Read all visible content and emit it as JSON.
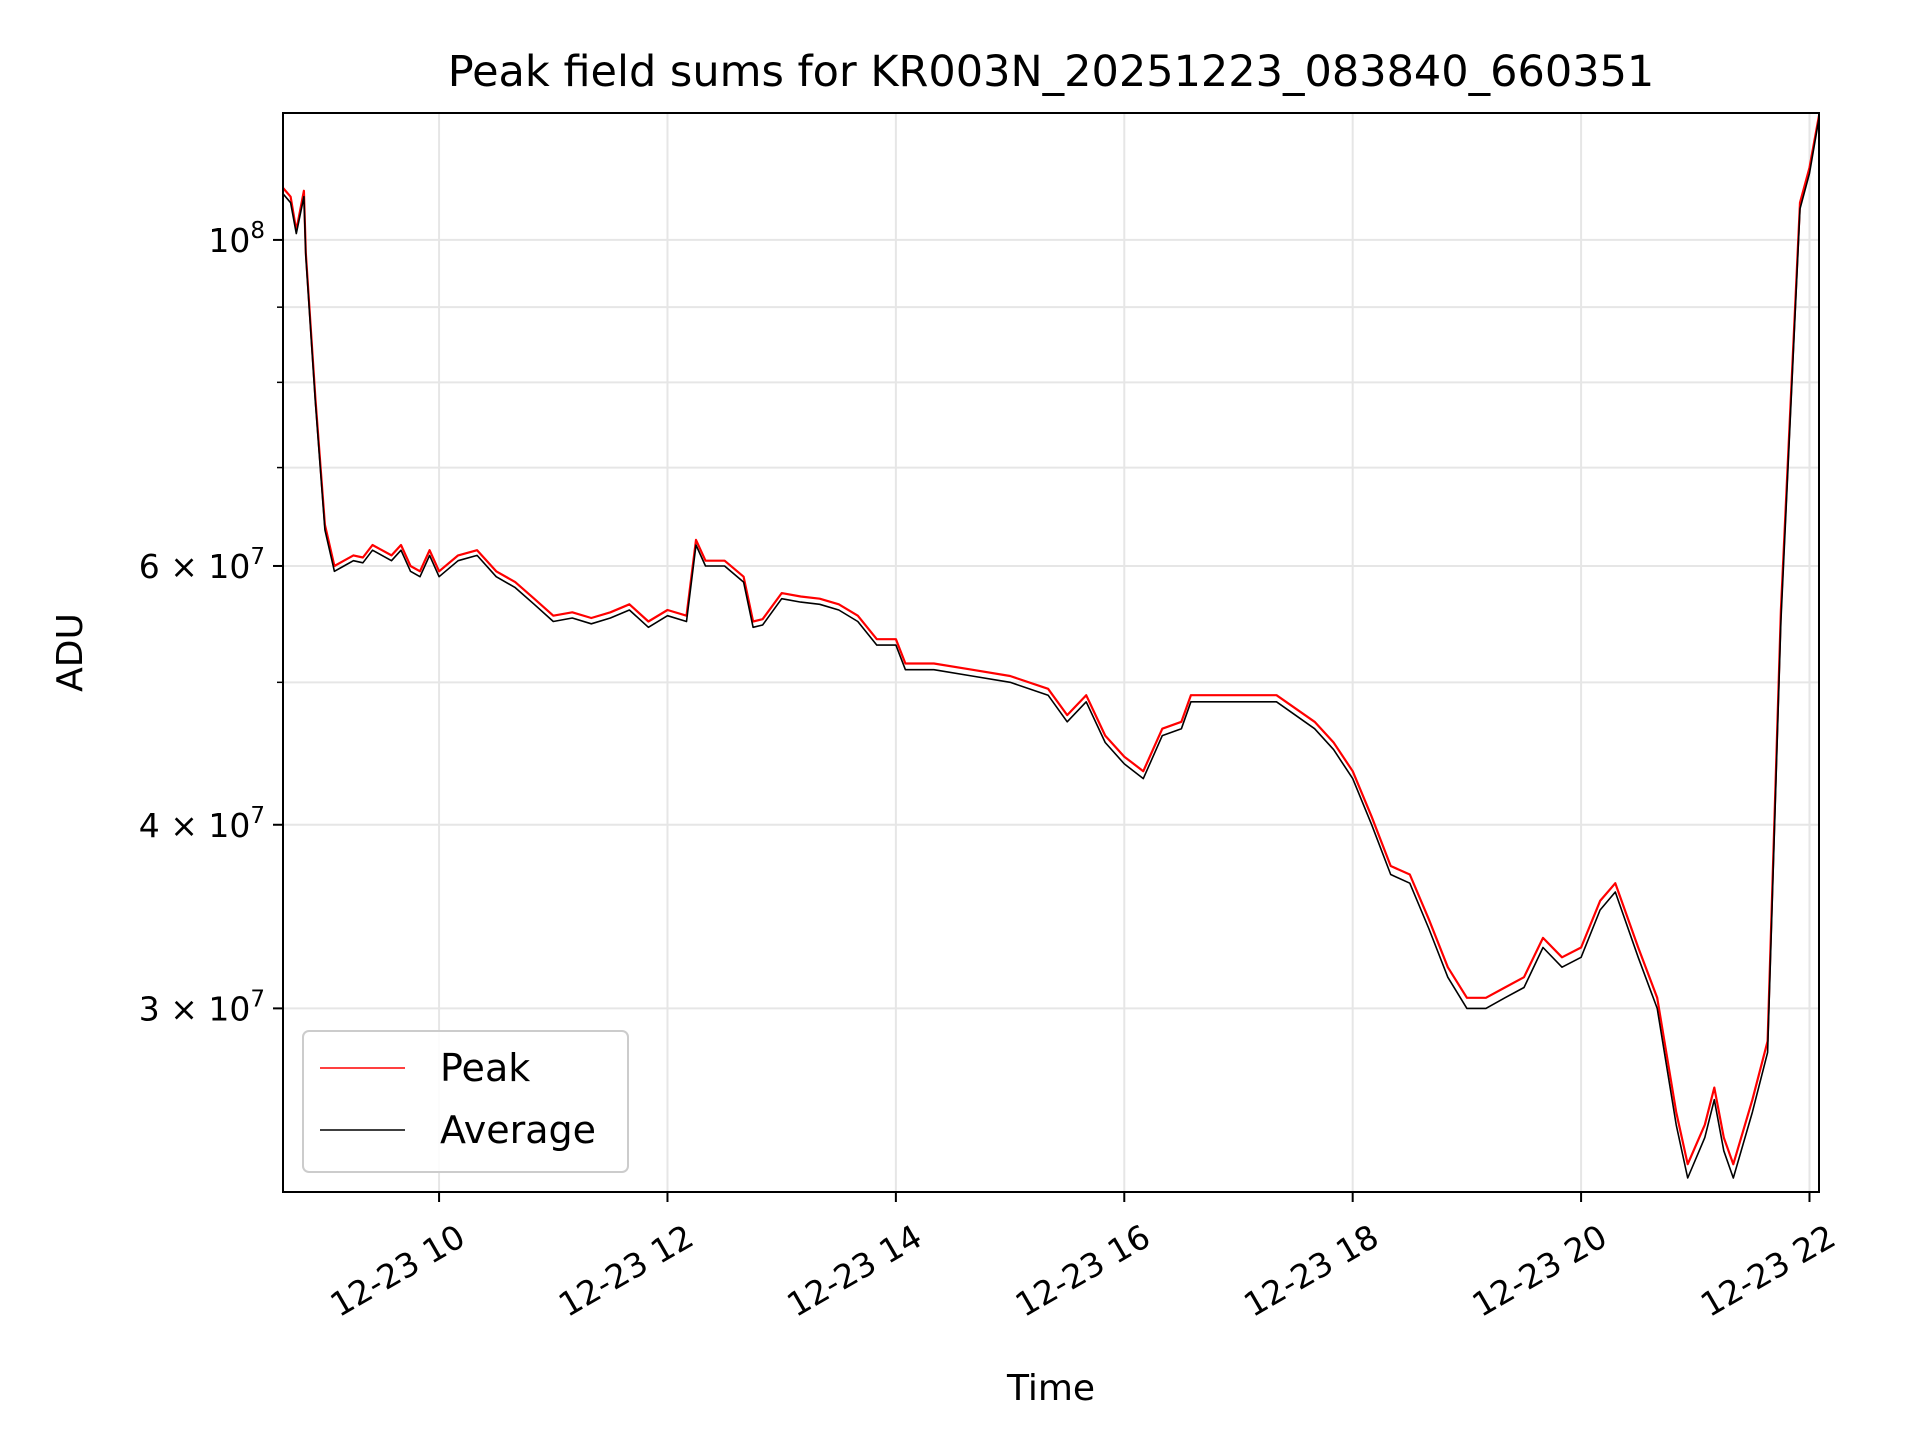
{
  "chart_data": {
    "type": "line",
    "title": "Peak field sums for KR003N_20251223_083840_660351",
    "xlabel": "Time",
    "ylabel": "ADU",
    "yscale": "log",
    "ylim": [
      22500000,
      122000000
    ],
    "xlim": [
      "2025-12-23 08:38",
      "2025-12-23 22:05"
    ],
    "grid": true,
    "legend_position": "lower-left",
    "x_ticks": [
      {
        "t": "2025-12-23 10:00",
        "label": "12-23 10"
      },
      {
        "t": "2025-12-23 12:00",
        "label": "12-23 12"
      },
      {
        "t": "2025-12-23 14:00",
        "label": "12-23 14"
      },
      {
        "t": "2025-12-23 16:00",
        "label": "12-23 16"
      },
      {
        "t": "2025-12-23 18:00",
        "label": "12-23 18"
      },
      {
        "t": "2025-12-23 20:00",
        "label": "12-23 20"
      },
      {
        "t": "2025-12-23 22:00",
        "label": "12-23 22"
      }
    ],
    "y_ticks": [
      {
        "v": 30000000,
        "base": "3 × 10",
        "exp": "7"
      },
      {
        "v": 40000000,
        "base": "4 × 10",
        "exp": "7"
      },
      {
        "v": 60000000,
        "base": "6 × 10",
        "exp": "7"
      },
      {
        "v": 100000000,
        "base": "10",
        "exp": "8"
      }
    ],
    "y_minor_ticks": [
      50000000,
      70000000,
      80000000,
      90000000
    ],
    "series": [
      {
        "name": "Peak",
        "color": "#ff0000",
        "x": [
          "2025-12-23 08:38",
          "2025-12-23 08:42",
          "2025-12-23 08:45",
          "2025-12-23 08:49",
          "2025-12-23 08:50",
          "2025-12-23 08:55",
          "2025-12-23 09:00",
          "2025-12-23 09:05",
          "2025-12-23 09:10",
          "2025-12-23 09:15",
          "2025-12-23 09:20",
          "2025-12-23 09:25",
          "2025-12-23 09:30",
          "2025-12-23 09:35",
          "2025-12-23 09:40",
          "2025-12-23 09:45",
          "2025-12-23 09:50",
          "2025-12-23 09:55",
          "2025-12-23 10:00",
          "2025-12-23 10:10",
          "2025-12-23 10:20",
          "2025-12-23 10:30",
          "2025-12-23 10:40",
          "2025-12-23 10:50",
          "2025-12-23 11:00",
          "2025-12-23 11:10",
          "2025-12-23 11:20",
          "2025-12-23 11:30",
          "2025-12-23 11:40",
          "2025-12-23 11:50",
          "2025-12-23 12:00",
          "2025-12-23 12:10",
          "2025-12-23 12:15",
          "2025-12-23 12:20",
          "2025-12-23 12:30",
          "2025-12-23 12:40",
          "2025-12-23 12:45",
          "2025-12-23 12:50",
          "2025-12-23 13:00",
          "2025-12-23 13:10",
          "2025-12-23 13:20",
          "2025-12-23 13:30",
          "2025-12-23 13:40",
          "2025-12-23 13:50",
          "2025-12-23 14:00",
          "2025-12-23 14:05",
          "2025-12-23 14:20",
          "2025-12-23 14:40",
          "2025-12-23 15:00",
          "2025-12-23 15:20",
          "2025-12-23 15:30",
          "2025-12-23 15:40",
          "2025-12-23 15:50",
          "2025-12-23 16:00",
          "2025-12-23 16:10",
          "2025-12-23 16:20",
          "2025-12-23 16:30",
          "2025-12-23 16:35",
          "2025-12-23 16:45",
          "2025-12-23 17:00",
          "2025-12-23 17:20",
          "2025-12-23 17:40",
          "2025-12-23 17:50",
          "2025-12-23 18:00",
          "2025-12-23 18:10",
          "2025-12-23 18:20",
          "2025-12-23 18:30",
          "2025-12-23 18:40",
          "2025-12-23 18:50",
          "2025-12-23 19:00",
          "2025-12-23 19:10",
          "2025-12-23 19:20",
          "2025-12-23 19:30",
          "2025-12-23 19:40",
          "2025-12-23 19:50",
          "2025-12-23 20:00",
          "2025-12-23 20:10",
          "2025-12-23 20:18",
          "2025-12-23 20:30",
          "2025-12-23 20:40",
          "2025-12-23 20:50",
          "2025-12-23 20:56",
          "2025-12-23 21:05",
          "2025-12-23 21:10",
          "2025-12-23 21:15",
          "2025-12-23 21:20",
          "2025-12-23 21:30",
          "2025-12-23 21:38",
          "2025-12-23 21:45",
          "2025-12-23 21:55",
          "2025-12-23 22:00",
          "2025-12-23 22:05"
        ],
        "y": [
          108500000,
          107000000,
          101500000,
          108000000,
          98000000,
          78000000,
          64000000,
          60000000,
          60500000,
          61000000,
          60800000,
          62000000,
          61500000,
          61000000,
          62000000,
          60000000,
          59500000,
          61500000,
          59500000,
          61000000,
          61500000,
          59500000,
          58500000,
          57000000,
          55500000,
          55800000,
          55300000,
          55800000,
          56500000,
          55000000,
          56000000,
          55500000,
          62500000,
          60500000,
          60500000,
          59000000,
          55000000,
          55200000,
          57500000,
          57200000,
          57000000,
          56500000,
          55500000,
          53500000,
          53500000,
          51500000,
          51500000,
          51000000,
          50500000,
          49500000,
          47500000,
          49000000,
          46000000,
          44500000,
          43500000,
          46500000,
          47000000,
          49000000,
          49000000,
          49000000,
          49000000,
          47000000,
          45500000,
          43500000,
          40500000,
          37500000,
          37000000,
          34500000,
          32000000,
          30500000,
          30500000,
          31000000,
          31500000,
          33500000,
          32500000,
          33000000,
          35500000,
          36500000,
          33000000,
          30500000,
          25500000,
          23500000,
          25000000,
          26500000,
          24500000,
          23500000,
          26000000,
          28500000,
          56000000,
          106000000,
          112000000,
          121500000
        ]
      },
      {
        "name": "Average",
        "color": "#000000",
        "x": [
          "2025-12-23 08:38",
          "2025-12-23 08:42",
          "2025-12-23 08:45",
          "2025-12-23 08:49",
          "2025-12-23 08:50",
          "2025-12-23 08:55",
          "2025-12-23 09:00",
          "2025-12-23 09:05",
          "2025-12-23 09:10",
          "2025-12-23 09:15",
          "2025-12-23 09:20",
          "2025-12-23 09:25",
          "2025-12-23 09:30",
          "2025-12-23 09:35",
          "2025-12-23 09:40",
          "2025-12-23 09:45",
          "2025-12-23 09:50",
          "2025-12-23 09:55",
          "2025-12-23 10:00",
          "2025-12-23 10:10",
          "2025-12-23 10:20",
          "2025-12-23 10:30",
          "2025-12-23 10:40",
          "2025-12-23 10:50",
          "2025-12-23 11:00",
          "2025-12-23 11:10",
          "2025-12-23 11:20",
          "2025-12-23 11:30",
          "2025-12-23 11:40",
          "2025-12-23 11:50",
          "2025-12-23 12:00",
          "2025-12-23 12:10",
          "2025-12-23 12:15",
          "2025-12-23 12:20",
          "2025-12-23 12:30",
          "2025-12-23 12:40",
          "2025-12-23 12:45",
          "2025-12-23 12:50",
          "2025-12-23 13:00",
          "2025-12-23 13:10",
          "2025-12-23 13:20",
          "2025-12-23 13:30",
          "2025-12-23 13:40",
          "2025-12-23 13:50",
          "2025-12-23 14:00",
          "2025-12-23 14:05",
          "2025-12-23 14:20",
          "2025-12-23 14:40",
          "2025-12-23 15:00",
          "2025-12-23 15:20",
          "2025-12-23 15:30",
          "2025-12-23 15:40",
          "2025-12-23 15:50",
          "2025-12-23 16:00",
          "2025-12-23 16:10",
          "2025-12-23 16:20",
          "2025-12-23 16:30",
          "2025-12-23 16:35",
          "2025-12-23 16:45",
          "2025-12-23 17:00",
          "2025-12-23 17:20",
          "2025-12-23 17:40",
          "2025-12-23 17:50",
          "2025-12-23 18:00",
          "2025-12-23 18:10",
          "2025-12-23 18:20",
          "2025-12-23 18:30",
          "2025-12-23 18:40",
          "2025-12-23 18:50",
          "2025-12-23 19:00",
          "2025-12-23 19:10",
          "2025-12-23 19:20",
          "2025-12-23 19:30",
          "2025-12-23 19:40",
          "2025-12-23 19:50",
          "2025-12-23 20:00",
          "2025-12-23 20:10",
          "2025-12-23 20:18",
          "2025-12-23 20:30",
          "2025-12-23 20:40",
          "2025-12-23 20:50",
          "2025-12-23 20:56",
          "2025-12-23 21:05",
          "2025-12-23 21:10",
          "2025-12-23 21:15",
          "2025-12-23 21:20",
          "2025-12-23 21:30",
          "2025-12-23 21:38",
          "2025-12-23 21:45",
          "2025-12-23 21:55",
          "2025-12-23 22:00",
          "2025-12-23 22:05"
        ],
        "y": [
          107500000,
          106000000,
          101000000,
          107000000,
          97500000,
          77500000,
          63500000,
          59500000,
          60000000,
          60500000,
          60300000,
          61500000,
          61000000,
          60500000,
          61500000,
          59500000,
          59000000,
          61000000,
          59000000,
          60500000,
          61000000,
          59000000,
          58000000,
          56500000,
          55000000,
          55300000,
          54800000,
          55300000,
          56000000,
          54500000,
          55500000,
          55000000,
          62000000,
          60000000,
          60000000,
          58500000,
          54500000,
          54700000,
          57000000,
          56700000,
          56500000,
          56000000,
          55000000,
          53000000,
          53000000,
          51000000,
          51000000,
          50500000,
          50000000,
          49000000,
          47000000,
          48500000,
          45500000,
          44000000,
          43000000,
          46000000,
          46500000,
          48500000,
          48500000,
          48500000,
          48500000,
          46500000,
          45000000,
          43000000,
          40000000,
          37000000,
          36500000,
          34000000,
          31500000,
          30000000,
          30000000,
          30500000,
          31000000,
          33000000,
          32000000,
          32500000,
          35000000,
          36000000,
          32500000,
          30000000,
          25000000,
          23000000,
          24500000,
          26000000,
          24000000,
          23000000,
          25500000,
          28000000,
          55000000,
          105000000,
          111000000,
          121000000
        ]
      }
    ]
  }
}
